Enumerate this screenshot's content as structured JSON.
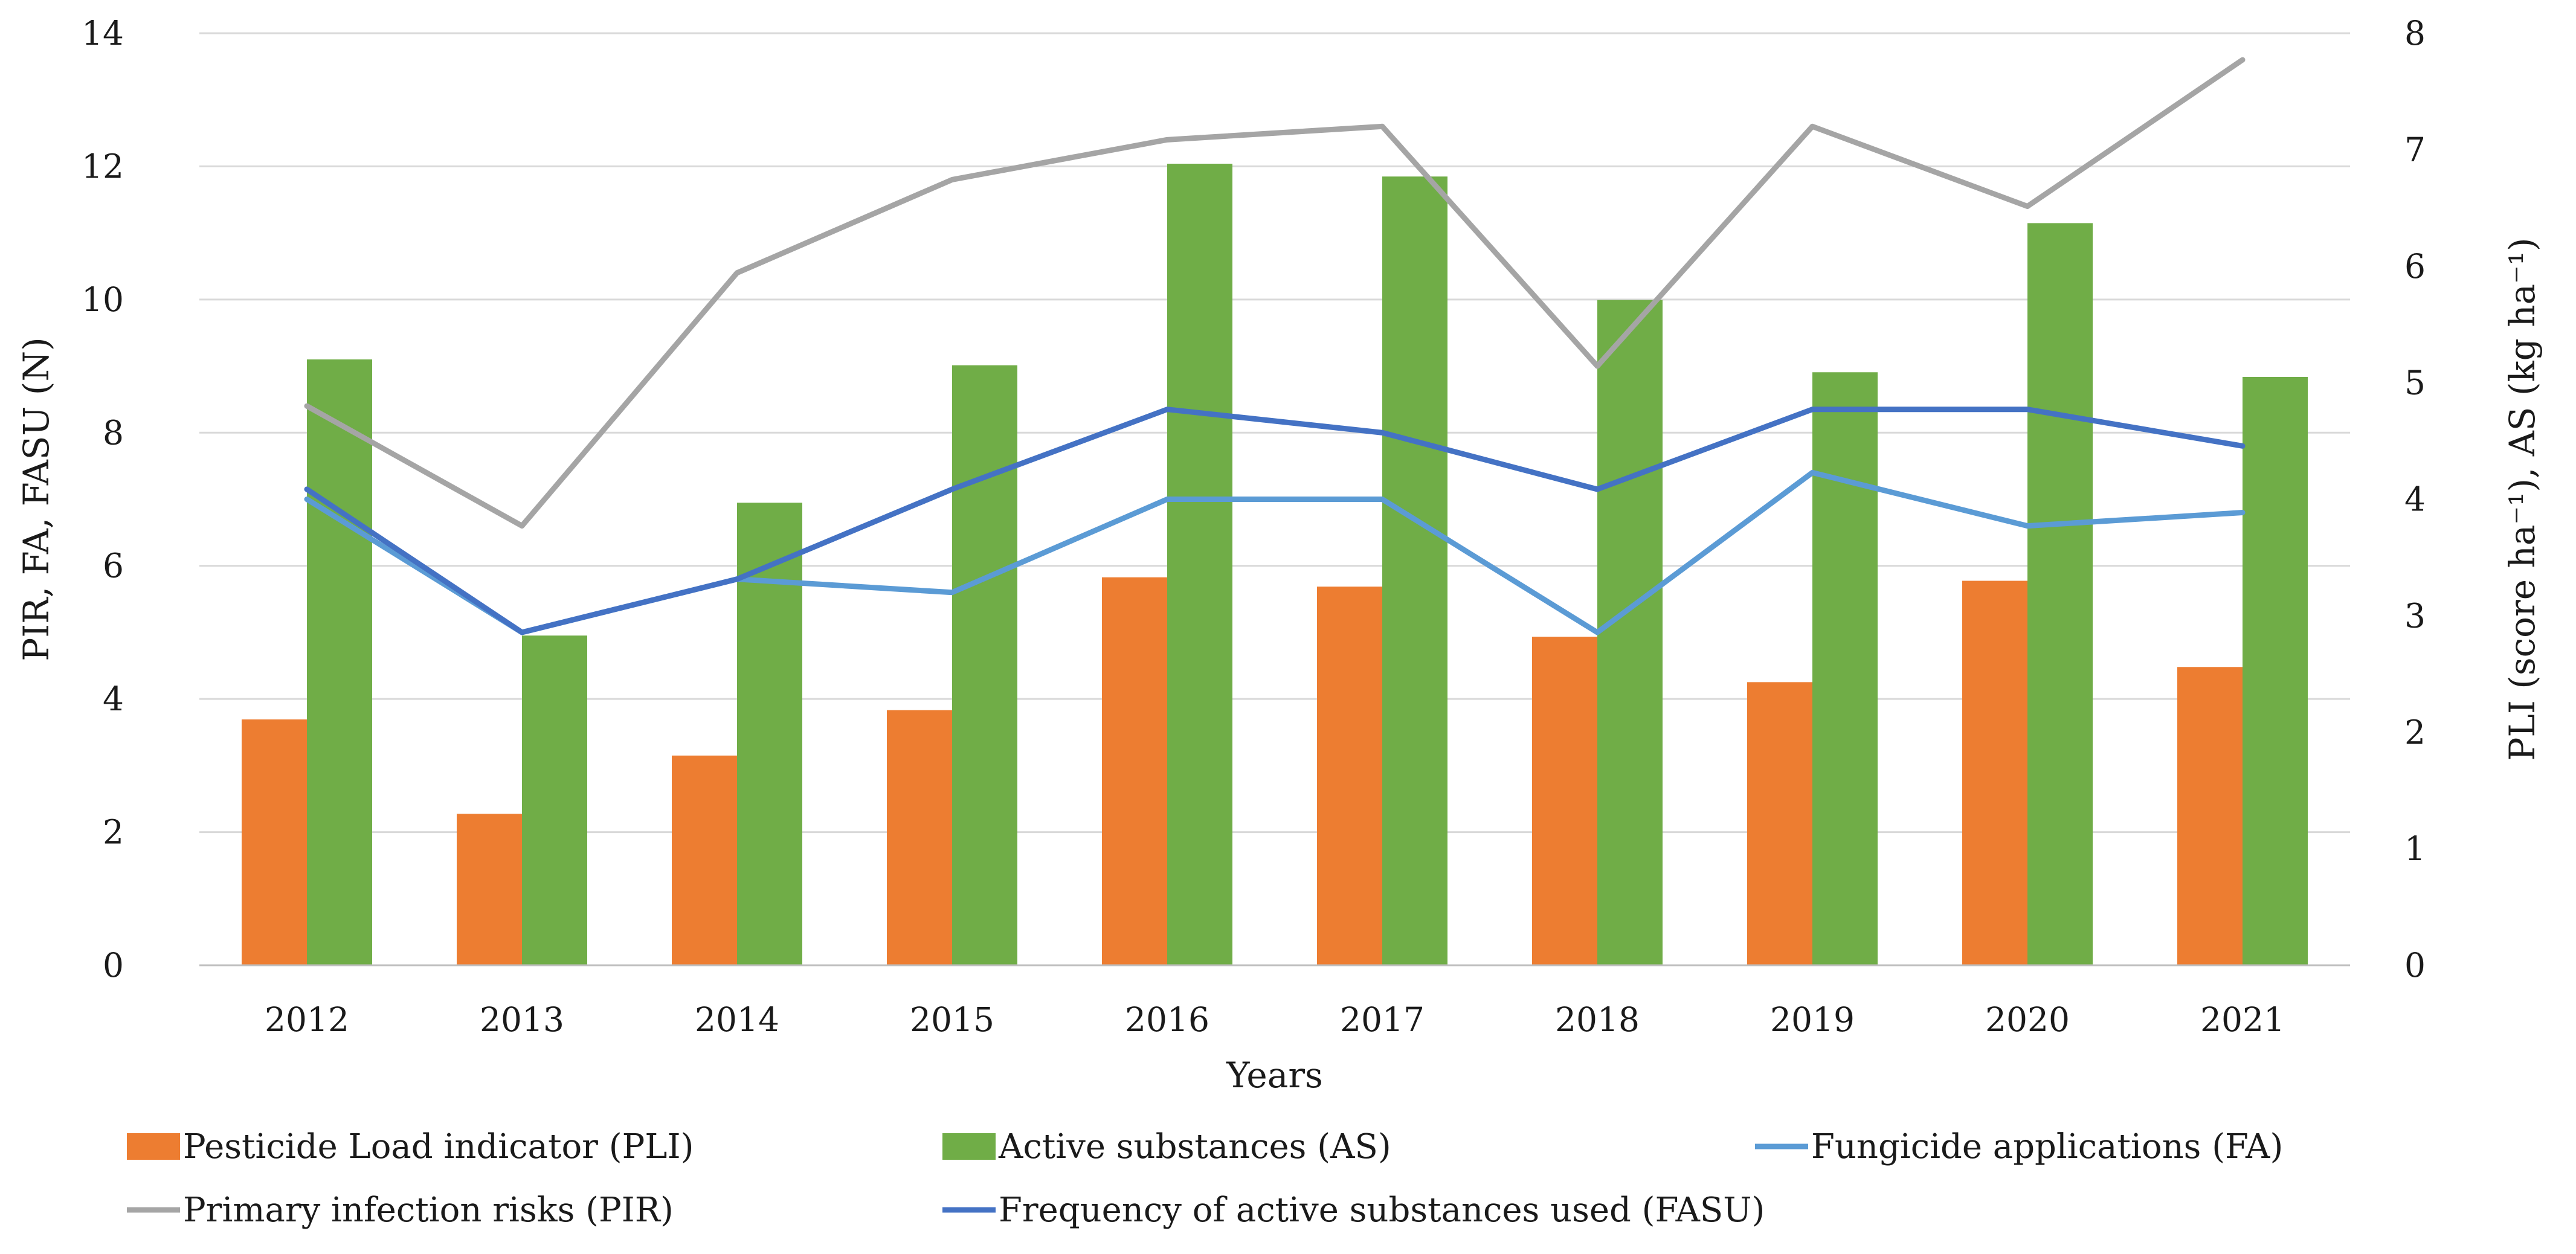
{
  "chart_data": {
    "type": "bar",
    "categories": [
      "2012",
      "2013",
      "2014",
      "2015",
      "2016",
      "2017",
      "2018",
      "2019",
      "2020",
      "2021"
    ],
    "xlabel": "Years",
    "ylabel": "PIR, FA, FASU (N)",
    "ylabel_right": "PLI (score ha⁻¹), AS (kg ha⁻¹)",
    "ylim": [
      0,
      14
    ],
    "ylim_right": [
      0,
      8
    ],
    "yticks": [
      "0",
      "2",
      "4",
      "6",
      "8",
      "10",
      "12",
      "14"
    ],
    "yticks_right": [
      "0",
      "1",
      "2",
      "3",
      "4",
      "5",
      "6",
      "7",
      "8"
    ],
    "grid": true,
    "legend_position": "bottom",
    "series": [
      {
        "name": "Pesticide Load indicator (PLI)",
        "kind": "bar",
        "axis": "right",
        "color": "#ED7D31",
        "values": [
          2.11,
          1.3,
          1.8,
          2.19,
          3.33,
          3.25,
          2.82,
          2.43,
          3.3,
          2.56
        ]
      },
      {
        "name": "Active substances (AS)",
        "kind": "bar",
        "axis": "right",
        "color": "#70AD47",
        "values": [
          5.2,
          2.83,
          3.97,
          5.15,
          6.88,
          6.77,
          5.71,
          5.09,
          6.37,
          5.05
        ]
      },
      {
        "name": "Fungicide applications (FA)",
        "kind": "line",
        "axis": "left",
        "color": "#5B9BD5",
        "values": [
          7.0,
          5.0,
          5.8,
          5.6,
          7.0,
          7.0,
          5.0,
          7.4,
          6.6,
          6.8
        ]
      },
      {
        "name": "Primary infection risks (PIR)",
        "kind": "line",
        "axis": "left",
        "color": "#A5A5A5",
        "values": [
          8.4,
          6.6,
          10.4,
          11.8,
          12.4,
          12.6,
          9.0,
          12.6,
          11.4,
          13.6
        ]
      },
      {
        "name": "Frequency of active substances used (FASU)",
        "kind": "line",
        "axis": "left",
        "color": "#4472C4",
        "values": [
          7.15,
          5.0,
          5.8,
          7.15,
          8.35,
          8.0,
          7.15,
          8.35,
          8.35,
          7.8
        ]
      }
    ]
  }
}
